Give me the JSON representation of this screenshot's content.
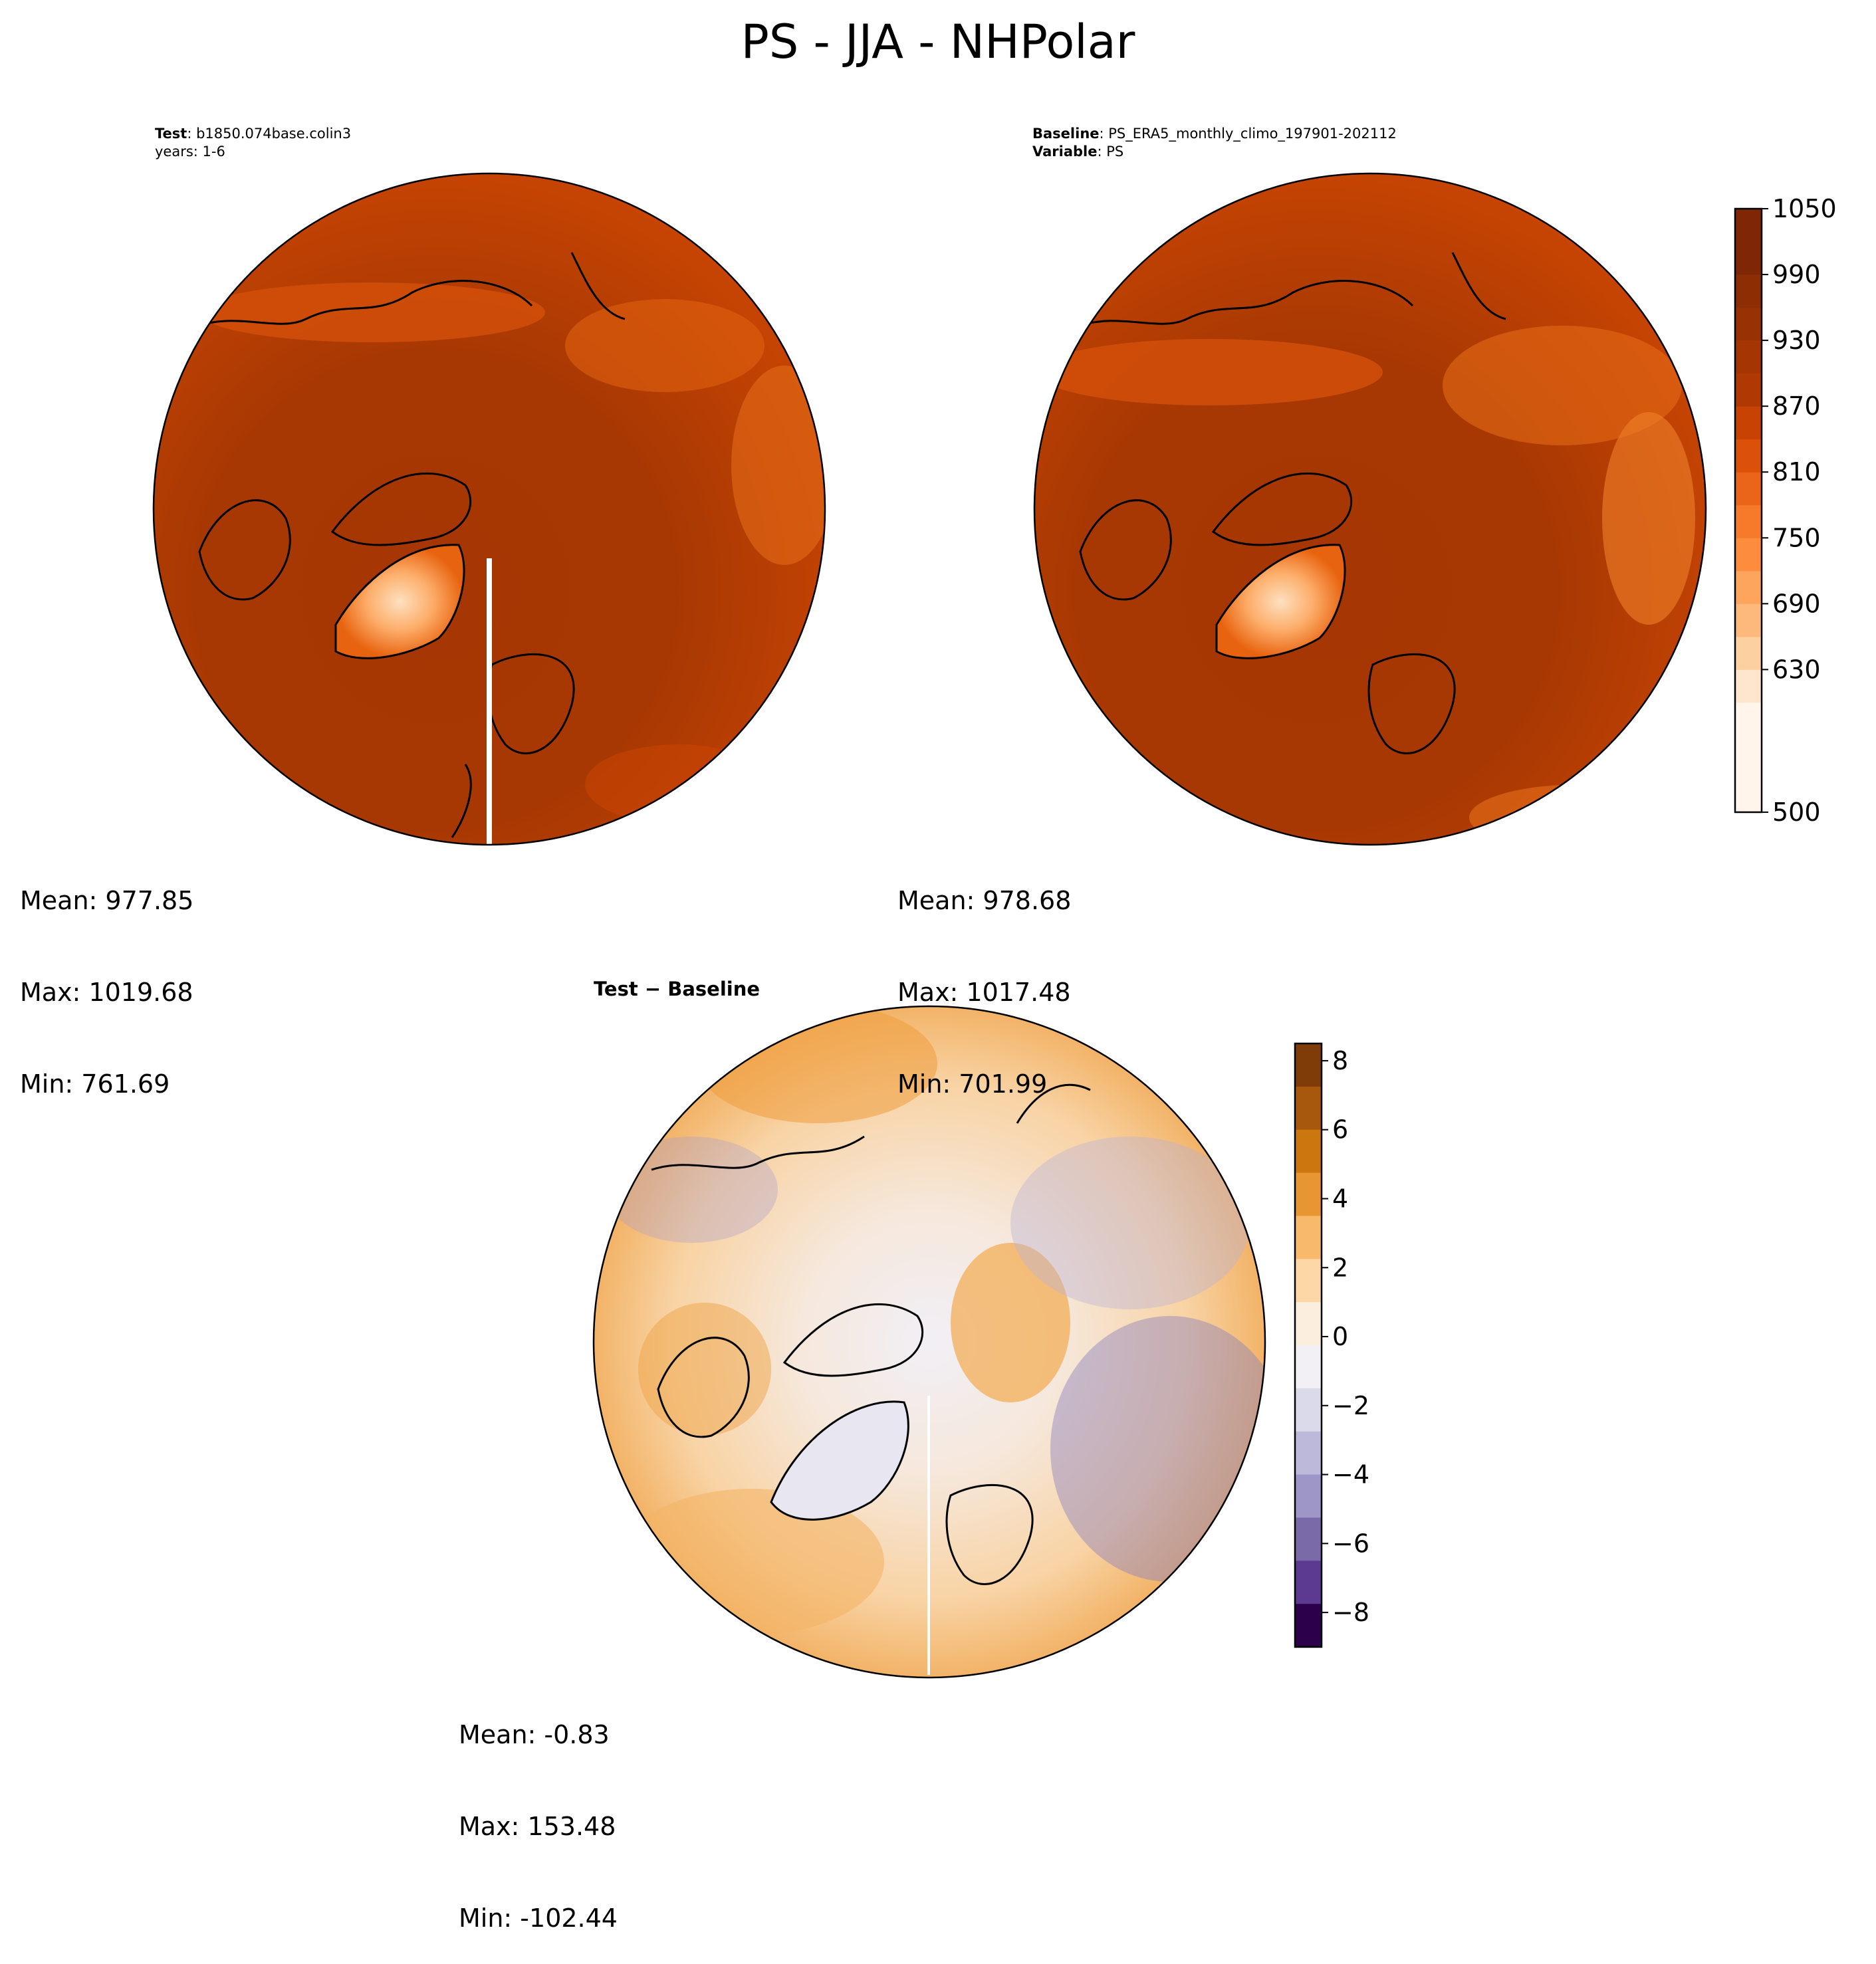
{
  "figure": {
    "title": "PS - JJA - NHPolar"
  },
  "test_panel": {
    "header_key_1": "Test",
    "header_val_1": ": b1850.074base.colin3",
    "header_line_2": "years: 1-6",
    "stats": {
      "mean": "Mean: 977.85",
      "max": "Max: 1019.68",
      "min": "Min: 761.69"
    }
  },
  "baseline_panel": {
    "header_key_1": "Baseline",
    "header_val_1": ": PS_ERA5_monthly_climo_197901-202112",
    "header_key_2": "Variable",
    "header_val_2": ": PS",
    "stats": {
      "mean": "Mean: 978.68",
      "max": "Max: 1017.48",
      "min": "Min: 701.99"
    }
  },
  "diff_panel": {
    "title": "Test − Baseline",
    "stats": {
      "mean": "Mean: -0.83",
      "max": "Max: 153.48",
      "min": "Min: -102.44"
    }
  },
  "chart_data": [
    {
      "type": "heatmap",
      "panel": "test",
      "projection": "north-polar-stereographic",
      "variable": "PS",
      "season": "JJA",
      "mean": 977.85,
      "max": 1019.68,
      "min": 761.69,
      "colormap": "Oranges",
      "clim": [
        500,
        1050
      ]
    },
    {
      "type": "heatmap",
      "panel": "baseline",
      "projection": "north-polar-stereographic",
      "variable": "PS",
      "season": "JJA",
      "mean": 978.68,
      "max": 1017.48,
      "min": 701.99,
      "colormap": "Oranges",
      "clim": [
        500,
        1050
      ]
    },
    {
      "type": "heatmap",
      "panel": "difference",
      "projection": "north-polar-stereographic",
      "mean": -0.83,
      "max": 153.48,
      "min": -102.44,
      "colormap": "PuOr (diverging)",
      "clim": [
        -9,
        8.5
      ]
    }
  ],
  "colorbar_main": {
    "ticks": [
      1050,
      990,
      930,
      870,
      810,
      750,
      690,
      630,
      500
    ],
    "tick_labels": [
      "1050",
      "990",
      "930",
      "870",
      "810",
      "750",
      "690",
      "630",
      "500"
    ],
    "colors": [
      "#fff5eb",
      "#fee6ce",
      "#fdd0a2",
      "#fdb97c",
      "#fda55d",
      "#fd8d3c",
      "#f67a2a",
      "#ea6519",
      "#db5109",
      "#c84203",
      "#b03903",
      "#a53603",
      "#983205",
      "#8c2d04",
      "#7f2704"
    ]
  },
  "colorbar_diff": {
    "ticks": [
      8,
      6,
      4,
      2,
      0,
      -2,
      -4,
      -6,
      -8
    ],
    "tick_labels": [
      "8",
      "6",
      "4",
      "2",
      "0",
      "−2",
      "−4",
      "−6",
      "−8"
    ],
    "colors_top_to_bottom": [
      "#7f3b08",
      "#a8580c",
      "#cc760f",
      "#e89633",
      "#f8b96b",
      "#fdd7a5",
      "#fbeede",
      "#f2f0f5",
      "#dadaeb",
      "#bcb9da",
      "#9d96c6",
      "#7b6aa8",
      "#5c3a92",
      "#2d004b"
    ]
  }
}
